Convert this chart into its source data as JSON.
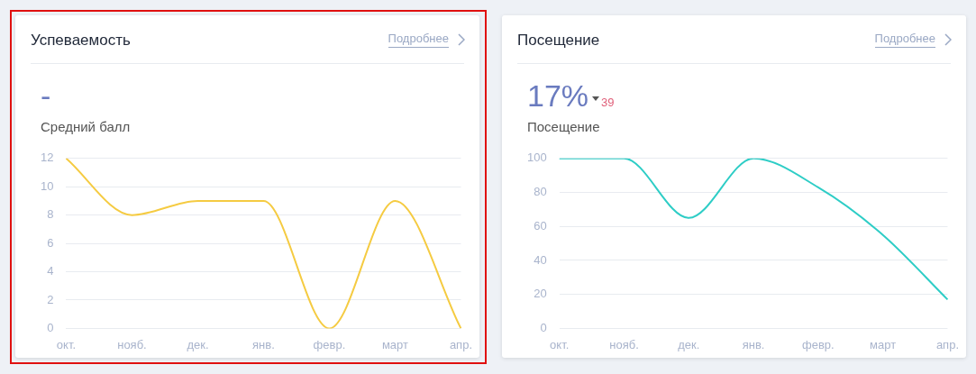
{
  "chart_data": [
    {
      "type": "line",
      "title": "Успеваемость",
      "subtitle": "Средний балл",
      "annotations": [
        "Подробнее",
        "-"
      ],
      "categories": [
        "окт.",
        "нояб.",
        "дек.",
        "янв.",
        "февр.",
        "март",
        "апр."
      ],
      "series": [
        {
          "color": "#f5cb42",
          "values": [
            12,
            8,
            9,
            9,
            0,
            9,
            0
          ]
        }
      ],
      "ylim": [
        0,
        12
      ],
      "yticks": [
        0,
        2,
        4,
        6,
        8,
        10,
        12
      ],
      "grid": "y"
    },
    {
      "type": "line",
      "title": "Посещение",
      "subtitle": "Посещение",
      "annotations": [
        "Подробнее",
        "17%",
        "39"
      ],
      "categories": [
        "окт.",
        "нояб.",
        "дек.",
        "янв.",
        "февр.",
        "март",
        "апр."
      ],
      "series": [
        {
          "color": "#2ecdc6",
          "values": [
            100,
            100,
            65,
            100,
            83,
            55,
            17
          ]
        }
      ],
      "ylim": [
        0,
        100
      ],
      "yticks": [
        0,
        20,
        40,
        60,
        80,
        100
      ],
      "grid": "y"
    }
  ]
}
